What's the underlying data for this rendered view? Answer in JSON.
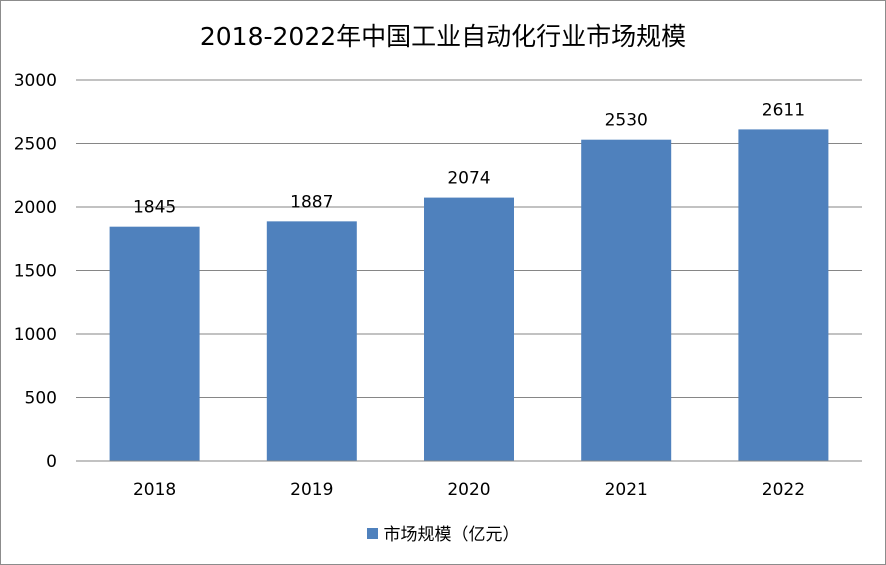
{
  "chart_data": {
    "type": "bar",
    "title": "2018-2022年中国工业自动化行业市场规模",
    "categories": [
      "2018",
      "2019",
      "2020",
      "2021",
      "2022"
    ],
    "series": [
      {
        "name": "市场规模（亿元）",
        "values": [
          1845,
          1887,
          2074,
          2530,
          2611
        ]
      }
    ],
    "ylim": [
      0,
      3000
    ],
    "yticks": [
      "0",
      "500",
      "1000",
      "1500",
      "2000",
      "2500",
      "3000"
    ],
    "grid": true,
    "legend": "bottom",
    "colors": {
      "bar": "#4f81bd",
      "grid": "#868686"
    }
  }
}
